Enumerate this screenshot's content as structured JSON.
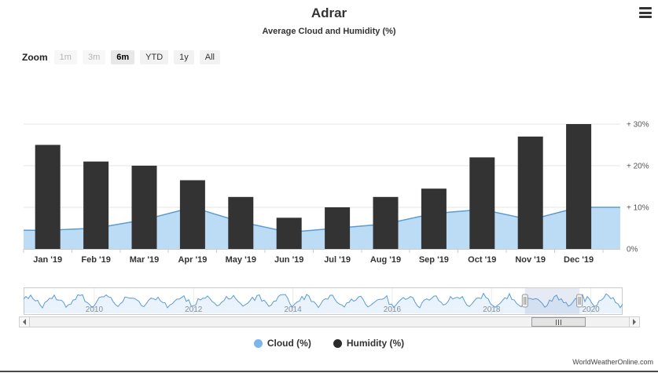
{
  "header": {
    "title": "Adrar",
    "subtitle": "Average Cloud and Humidity (%)"
  },
  "range_selector": {
    "zoom_label": "Zoom",
    "buttons": [
      {
        "label": "1m",
        "state": "disabled"
      },
      {
        "label": "3m",
        "state": "disabled"
      },
      {
        "label": "6m",
        "state": "selected"
      },
      {
        "label": "YTD",
        "state": "normal"
      },
      {
        "label": "1y",
        "state": "normal"
      },
      {
        "label": "All",
        "state": "normal"
      }
    ]
  },
  "chart_data": {
    "type": "combo",
    "title": "Adrar",
    "subtitle": "Average Cloud and Humidity (%)",
    "categories": [
      "Jan '19",
      "Feb '19",
      "Mar '19",
      "Apr '19",
      "May '19",
      "Jun '19",
      "Jul '19",
      "Aug '19",
      "Sep '19",
      "Oct '19",
      "Nov '19",
      "Dec '19"
    ],
    "series": [
      {
        "name": "Cloud (%)",
        "type": "area",
        "color": "#5b9bd5",
        "fill": "#bcdcf5",
        "values": [
          4.5,
          5,
          7,
          10,
          6.5,
          4,
          5,
          6,
          8.5,
          9.5,
          7,
          10
        ]
      },
      {
        "name": "Humidity (%)",
        "type": "column",
        "color": "#333333",
        "values": [
          25,
          21,
          20,
          16.5,
          12.5,
          7.5,
          10,
          12.5,
          14.5,
          22,
          27,
          30
        ]
      }
    ],
    "yaxis": {
      "min": 0,
      "max": 32,
      "ticks": [
        0,
        10,
        20,
        30
      ],
      "tick_labels": [
        "0%",
        "+ 10%",
        "+ 20%",
        "+ 30%"
      ]
    },
    "grid": true,
    "legend_position": "bottom"
  },
  "navigator": {
    "year_labels": [
      "2010",
      "2012",
      "2014",
      "2016",
      "2018",
      "2020"
    ],
    "selected_range": [
      0.837,
      0.928
    ]
  },
  "legend": {
    "items": [
      {
        "label": "Cloud (%)",
        "color": "#7cb5ec"
      },
      {
        "label": "Humidity (%)",
        "color": "#2b2b2b"
      }
    ]
  },
  "credits": "WorldWeatherOnline.com"
}
